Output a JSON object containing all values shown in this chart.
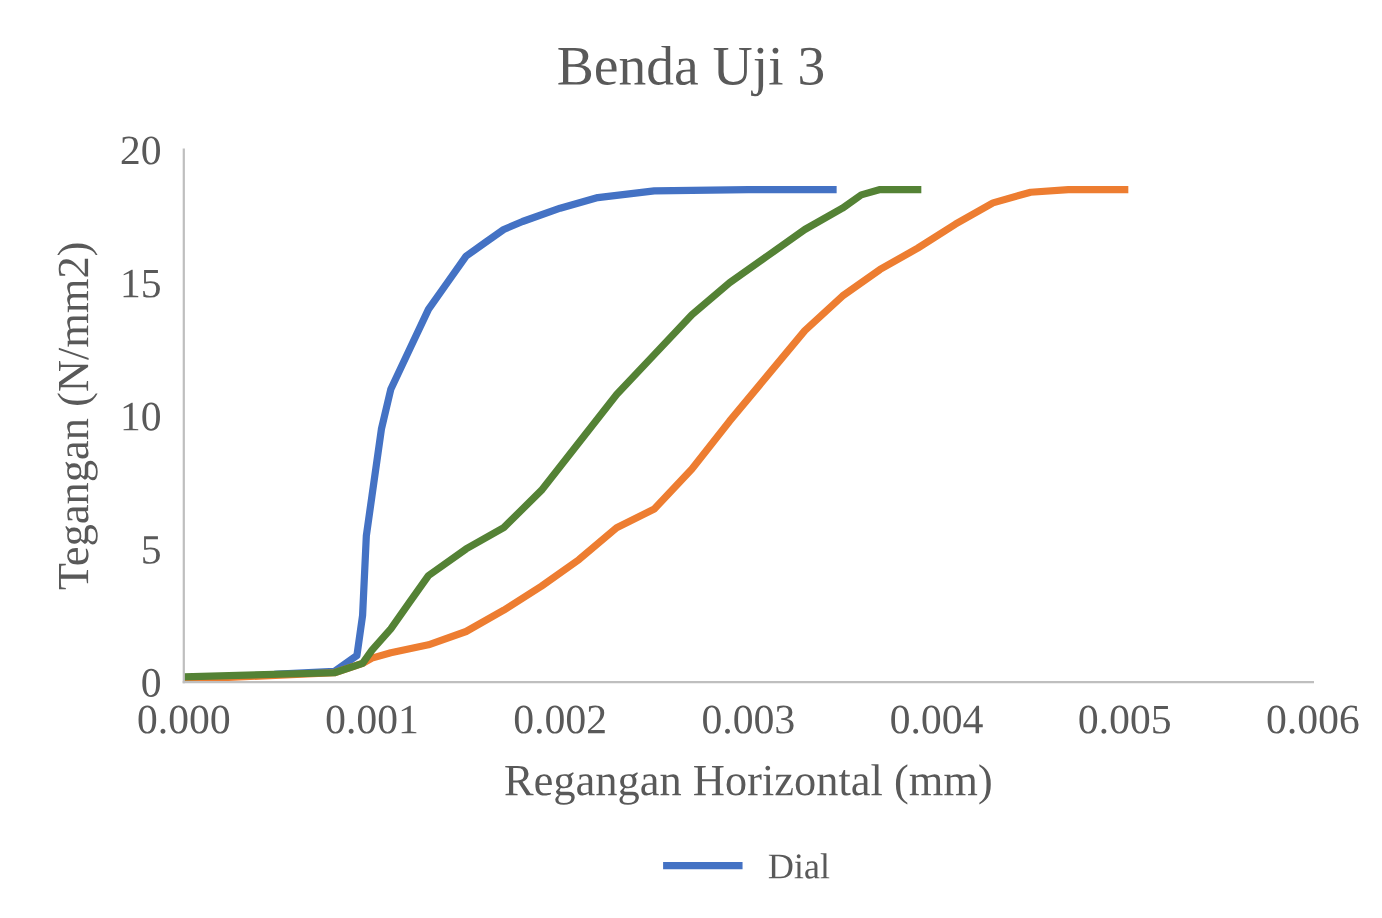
{
  "chart_data": {
    "type": "line",
    "title": "Benda Uji 3",
    "xlabel": "Regangan Horizontal (mm)",
    "ylabel": "Tegangan (N/mm2)",
    "xlim": [
      0,
      0.006
    ],
    "xticks": [
      {
        "value": 0,
        "label": "0.000"
      },
      {
        "value": 0.001,
        "label": "0.001"
      },
      {
        "value": 0.002,
        "label": "0.002"
      },
      {
        "value": 0.003,
        "label": "0.003"
      },
      {
        "value": 0.004,
        "label": "0.004"
      },
      {
        "value": 0.005,
        "label": "0.005"
      },
      {
        "value": 0.006,
        "label": "0.006"
      }
    ],
    "ylim": [
      0,
      20
    ],
    "yticks": [
      0,
      5,
      10,
      15,
      20
    ],
    "grid": false,
    "legend": "bottom",
    "marker": "none",
    "line_style": "solid",
    "series": [
      {
        "name": "Dial",
        "color": "#4472c4",
        "x": [
          0.0005,
          0.0008,
          0.00092,
          0.00095,
          0.00097,
          0.001,
          0.00105,
          0.0011,
          0.0012,
          0.0013,
          0.0014,
          0.0015,
          0.0016,
          0.0017,
          0.0018,
          0.002,
          0.0022,
          0.0025,
          0.003,
          0.00345
        ],
        "values": [
          0.3,
          0.4,
          1,
          2.5,
          5.5,
          7,
          9.5,
          11,
          12.5,
          14,
          15,
          16,
          16.5,
          17,
          17.3,
          17.8,
          18.2,
          18.45,
          18.5,
          18.5
        ]
      },
      {
        "color": "#ed7d31",
        "x": [
          0,
          0.0008,
          0.00095,
          0.001,
          0.0011,
          0.0013,
          0.0015,
          0.0017,
          0.0019,
          0.0021,
          0.0023,
          0.0025,
          0.0027,
          0.0029,
          0.0031,
          0.0033,
          0.0035,
          0.0037,
          0.0039,
          0.0041,
          0.0043,
          0.0045,
          0.0047,
          0.005
        ],
        "values": [
          0.1,
          0.35,
          0.7,
          0.9,
          1.1,
          1.4,
          1.9,
          2.7,
          3.6,
          4.6,
          5.8,
          6.5,
          8,
          9.8,
          11.5,
          13.2,
          14.5,
          15.5,
          16.3,
          17.2,
          18,
          18.4,
          18.5,
          18.5
        ]
      },
      {
        "color": "#548235",
        "x": [
          0,
          0.0008,
          0.00095,
          0.001,
          0.0011,
          0.0012,
          0.0013,
          0.0015,
          0.0017,
          0.0019,
          0.002,
          0.0021,
          0.0023,
          0.0025,
          0.0027,
          0.0029,
          0.0031,
          0.0033,
          0.0035,
          0.0036,
          0.0037,
          0.0039
        ],
        "values": [
          0.2,
          0.35,
          0.7,
          1.2,
          2,
          3,
          4,
          5,
          5.8,
          7.2,
          8.1,
          9,
          10.8,
          12.3,
          13.8,
          15,
          16,
          17,
          17.8,
          18.3,
          18.5,
          18.5
        ]
      }
    ]
  }
}
